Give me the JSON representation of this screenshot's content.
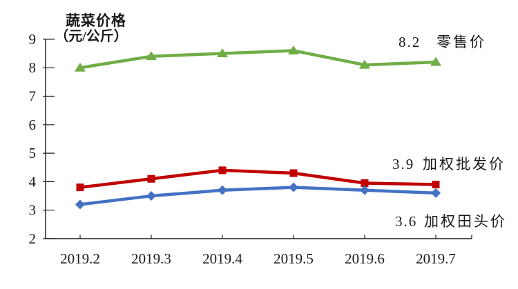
{
  "chart_data": {
    "type": "line",
    "title": "蔬菜价格",
    "subtitle": "（元/公斤）",
    "categories": [
      "2019.2",
      "2019.3",
      "2019.4",
      "2019.5",
      "2019.6",
      "2019.7"
    ],
    "ylim": [
      2,
      9
    ],
    "yticks": [
      2,
      3,
      4,
      5,
      6,
      7,
      8,
      9
    ],
    "grid": false,
    "legend_position": "inline-right-annotations",
    "series": [
      {
        "name": "零售价",
        "end_label": "8.2",
        "color": "#70AD47",
        "marker": "triangle",
        "values": [
          8.0,
          8.4,
          8.5,
          8.6,
          8.1,
          8.2
        ]
      },
      {
        "name": "加权批发价",
        "end_label": "3.9",
        "color": "#C00000",
        "marker": "square",
        "values": [
          3.8,
          4.1,
          4.4,
          4.3,
          3.95,
          3.9
        ]
      },
      {
        "name": "加权田头价",
        "end_label": "3.6",
        "color": "#4472C4",
        "marker": "diamond",
        "values": [
          3.2,
          3.5,
          3.7,
          3.8,
          3.7,
          3.6
        ]
      }
    ]
  }
}
